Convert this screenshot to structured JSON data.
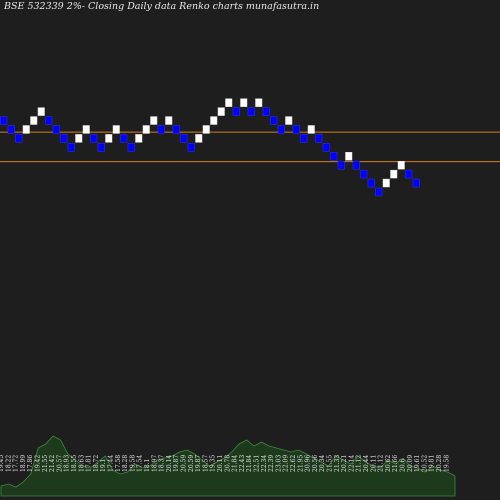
{
  "title": "BSE 532339 2%-  Closing Daily data  Renko  charts munafasutra.in",
  "colors": {
    "background": "#1e1e1e",
    "up_brick": "#ffffff",
    "down_brick": "#0000ff",
    "reference_line": "#d08020",
    "volume_fill": "#1d3a1d",
    "volume_stroke": "#3e8a3e"
  },
  "chart_data": {
    "type": "renko",
    "brick_size_label": "2%",
    "bricks": [
      {
        "level": 11,
        "dir": "down"
      },
      {
        "level": 10,
        "dir": "down"
      },
      {
        "level": 9,
        "dir": "down"
      },
      {
        "level": 10,
        "dir": "up"
      },
      {
        "level": 11,
        "dir": "up"
      },
      {
        "level": 12,
        "dir": "up"
      },
      {
        "level": 11,
        "dir": "down"
      },
      {
        "level": 10,
        "dir": "down"
      },
      {
        "level": 9,
        "dir": "down"
      },
      {
        "level": 8,
        "dir": "down"
      },
      {
        "level": 9,
        "dir": "up"
      },
      {
        "level": 10,
        "dir": "up"
      },
      {
        "level": 9,
        "dir": "down"
      },
      {
        "level": 8,
        "dir": "down"
      },
      {
        "level": 9,
        "dir": "up"
      },
      {
        "level": 10,
        "dir": "up"
      },
      {
        "level": 9,
        "dir": "down"
      },
      {
        "level": 8,
        "dir": "down"
      },
      {
        "level": 9,
        "dir": "up"
      },
      {
        "level": 10,
        "dir": "up"
      },
      {
        "level": 11,
        "dir": "up"
      },
      {
        "level": 10,
        "dir": "down"
      },
      {
        "level": 11,
        "dir": "up"
      },
      {
        "level": 10,
        "dir": "down"
      },
      {
        "level": 9,
        "dir": "down"
      },
      {
        "level": 8,
        "dir": "down"
      },
      {
        "level": 9,
        "dir": "up"
      },
      {
        "level": 10,
        "dir": "up"
      },
      {
        "level": 11,
        "dir": "up"
      },
      {
        "level": 12,
        "dir": "up"
      },
      {
        "level": 13,
        "dir": "up"
      },
      {
        "level": 12,
        "dir": "down"
      },
      {
        "level": 13,
        "dir": "up"
      },
      {
        "level": 12,
        "dir": "down"
      },
      {
        "level": 13,
        "dir": "up"
      },
      {
        "level": 12,
        "dir": "down"
      },
      {
        "level": 11,
        "dir": "down"
      },
      {
        "level": 10,
        "dir": "down"
      },
      {
        "level": 11,
        "dir": "up"
      },
      {
        "level": 10,
        "dir": "down"
      },
      {
        "level": 9,
        "dir": "down"
      },
      {
        "level": 10,
        "dir": "up"
      },
      {
        "level": 9,
        "dir": "down"
      },
      {
        "level": 8,
        "dir": "down"
      },
      {
        "level": 7,
        "dir": "down"
      },
      {
        "level": 6,
        "dir": "down"
      },
      {
        "level": 7,
        "dir": "up"
      },
      {
        "level": 6,
        "dir": "down"
      },
      {
        "level": 5,
        "dir": "down"
      },
      {
        "level": 4,
        "dir": "down"
      },
      {
        "level": 3,
        "dir": "down"
      },
      {
        "level": 4,
        "dir": "up"
      },
      {
        "level": 5,
        "dir": "up"
      },
      {
        "level": 6,
        "dir": "up"
      },
      {
        "level": 5,
        "dir": "down"
      },
      {
        "level": 4,
        "dir": "down"
      }
    ],
    "reference_levels": [
      10.2,
      6.9
    ],
    "level_range": [
      -31,
      25
    ],
    "volume_labels": [
      "19.45",
      "18.22",
      "17.72",
      "18.99",
      "17.86",
      "19.42",
      "21.55",
      "21.42",
      "20.57",
      "18.93",
      "18.55",
      "18.63",
      "17.81",
      "18.72",
      "19.1",
      "17.44",
      "17.58",
      "18.28",
      "19.58",
      "17.54",
      "18.1",
      "18.97",
      "18.37",
      "20.14",
      "19.87",
      "20.59",
      "20.59",
      "19.87",
      "18.57",
      "19.35",
      "20.11",
      "20.78",
      "21.84",
      "22.43",
      "21.84",
      "22.51",
      "22.34",
      "22.39",
      "23.03",
      "22.09",
      "22.62",
      "21.95",
      "20.96",
      "20.56",
      "20.34",
      "21.55",
      "21.33",
      "20.21",
      "22.14",
      "21.12",
      "20.44",
      "20.11",
      "21.12",
      "20.62",
      "21.66",
      "20.6",
      "20.09",
      "19.61",
      "20.52",
      "19.81",
      "20.28",
      "19.58"
    ],
    "volumes": [
      10,
      12,
      9,
      14,
      22,
      48,
      52,
      60,
      56,
      42,
      36,
      30,
      28,
      34,
      40,
      26,
      22,
      24,
      32,
      28,
      30,
      36,
      38,
      40,
      44,
      46,
      42,
      36,
      30,
      34,
      38,
      44,
      52,
      56,
      50,
      54,
      50,
      48,
      46,
      44,
      46,
      42,
      38,
      34,
      30,
      40,
      36,
      32,
      40,
      34,
      30,
      28,
      36,
      32,
      38,
      30,
      28,
      24,
      30,
      26,
      24,
      20
    ],
    "volume_range": [
      0,
      66
    ]
  }
}
